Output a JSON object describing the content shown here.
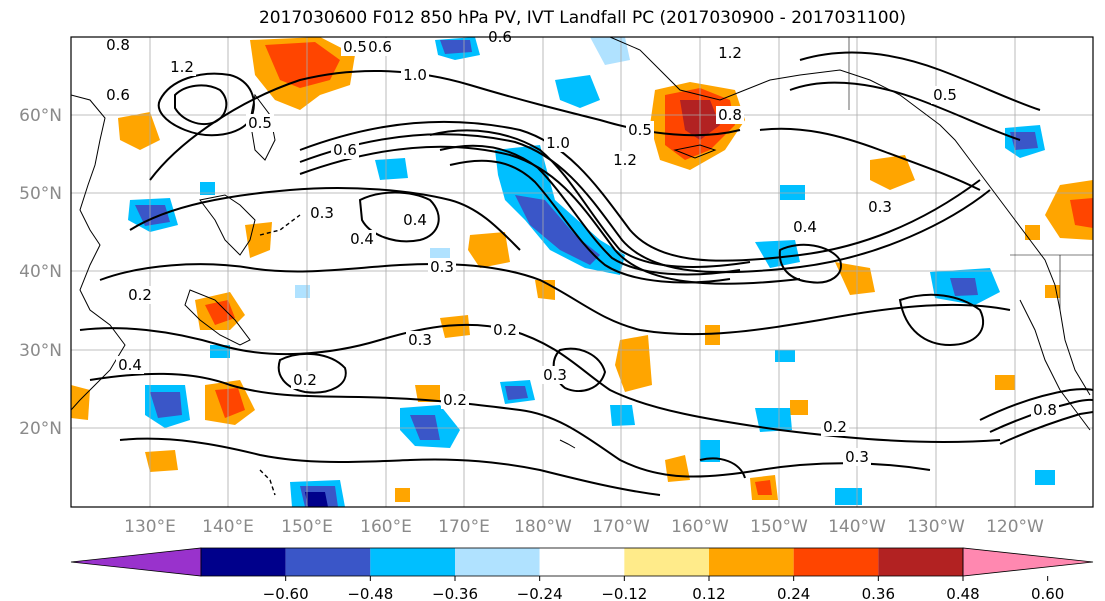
{
  "title": "2017030600 F012 850 hPa PV, IVT Landfall PC (2017030900 - 2017031100)",
  "lat_labels": [
    "60°N",
    "50°N",
    "40°N",
    "30°N",
    "20°N"
  ],
  "lon_labels": [
    "130°E",
    "140°E",
    "150°E",
    "160°E",
    "170°E",
    "180°W",
    "170°W",
    "160°W",
    "150°W",
    "140°W",
    "130°W",
    "120°W"
  ],
  "colorbar": {
    "ticks": [
      "−0.60",
      "−0.48",
      "−0.36",
      "−0.24",
      "−0.12",
      "0.12",
      "0.24",
      "0.36",
      "0.48",
      "0.60"
    ],
    "colors": [
      "#9932cc",
      "#00008b",
      "#3a56c8",
      "#00bfff",
      "#b0e2ff",
      "#ffffff",
      "#ffeb8a",
      "#ffa500",
      "#ff4500",
      "#b22222",
      "#ff88b0"
    ]
  },
  "contour_labels": [
    "0.8",
    "0.6",
    "1.2",
    "0.5",
    "1.0",
    "0.6",
    "1.2",
    "0.6",
    "0.5",
    "0.3",
    "0.4",
    "0.4",
    "0.3",
    "0.2",
    "0.3",
    "0.2",
    "0.3",
    "0.2",
    "0.2",
    "0.3",
    "0.4",
    "1.2",
    "0.3",
    "0.8",
    "0.5",
    "0.2",
    "0.4",
    "0.5",
    "1.0",
    "0.6",
    "0.8"
  ],
  "shading_colors": {
    "neg_light": "#b0e2ff",
    "neg_mid": "#00bfff",
    "neg_strong": "#3a56c8",
    "neg_max": "#00008b",
    "pos_light": "#ffeb8a",
    "pos_mid": "#ffa500",
    "pos_strong": "#ff4500",
    "pos_max": "#b22222"
  }
}
